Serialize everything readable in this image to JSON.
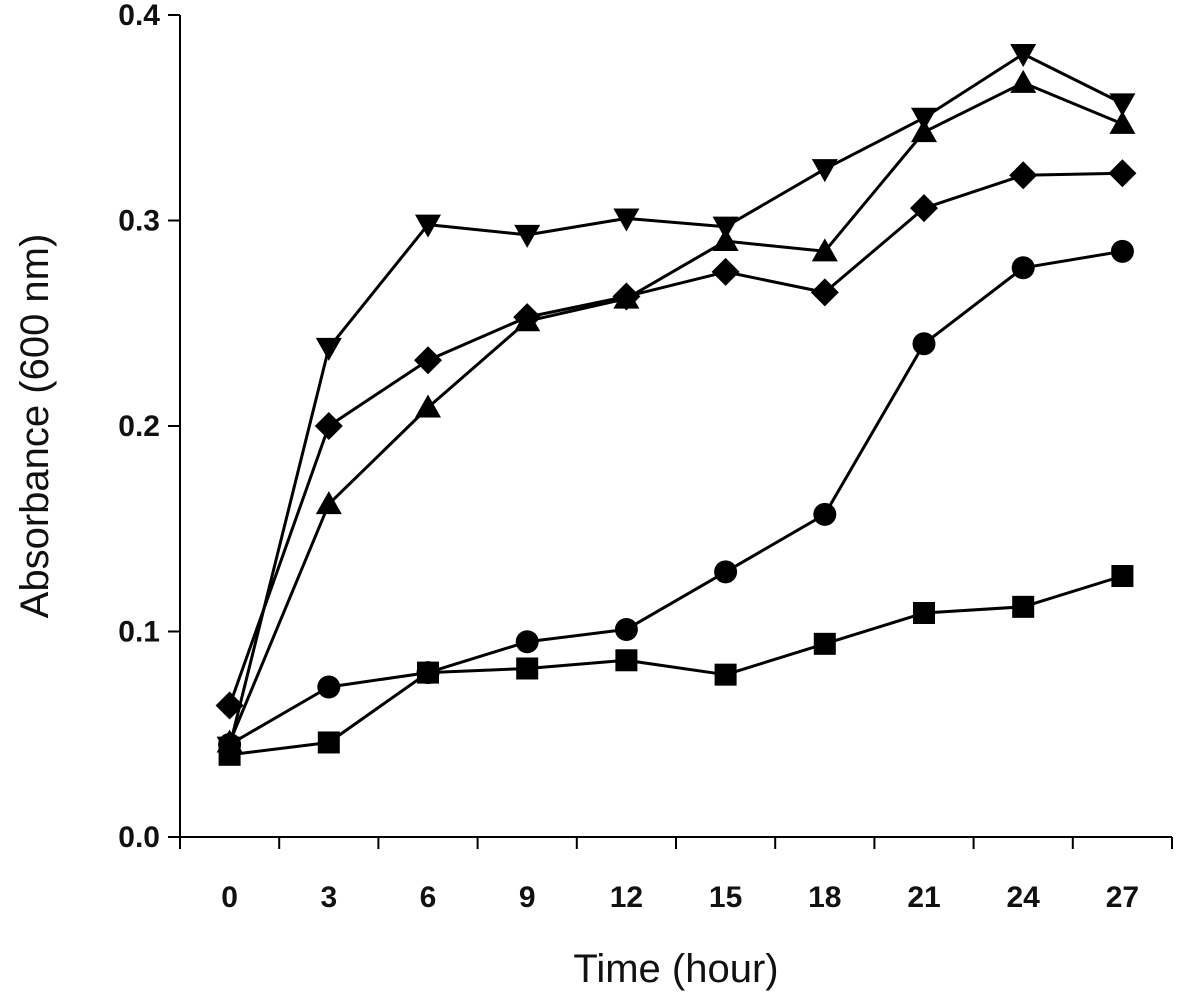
{
  "chart_data": {
    "type": "line",
    "title": "",
    "xlabel": "Time (hour)",
    "ylabel": "Absorbance (600 nm)",
    "x": [
      0,
      3,
      6,
      9,
      12,
      15,
      18,
      21,
      24,
      27
    ],
    "xlim": [
      -1.5,
      28.5
    ],
    "ylim": [
      0,
      0.4
    ],
    "x_ticks": [
      "0",
      "3",
      "6",
      "9",
      "12",
      "15",
      "18",
      "21",
      "24",
      "27"
    ],
    "y_ticks": [
      "0.0",
      "0.1",
      "0.2",
      "0.3",
      "0.4"
    ],
    "y_tick_values": [
      0,
      0.1,
      0.2,
      0.3,
      0.4
    ],
    "grid": false,
    "legend": "none",
    "line_color": "#000000",
    "series": [
      {
        "marker": "square",
        "values": [
          0.04,
          0.046,
          0.08,
          0.082,
          0.086,
          0.079,
          0.094,
          0.109,
          0.112,
          0.127
        ]
      },
      {
        "marker": "circle",
        "values": [
          0.045,
          0.073,
          0.08,
          0.095,
          0.101,
          0.129,
          0.157,
          0.24,
          0.277,
          0.285
        ]
      },
      {
        "marker": "triangle-up",
        "values": [
          0.046,
          0.162,
          0.209,
          0.251,
          0.262,
          0.29,
          0.285,
          0.343,
          0.367,
          0.347
        ]
      },
      {
        "marker": "triangle-down",
        "values": [
          0.044,
          0.238,
          0.298,
          0.293,
          0.301,
          0.297,
          0.325,
          0.35,
          0.381,
          0.357
        ]
      },
      {
        "marker": "diamond",
        "values": [
          0.064,
          0.2,
          0.232,
          0.253,
          0.263,
          0.275,
          0.265,
          0.306,
          0.322,
          0.323
        ]
      }
    ]
  }
}
